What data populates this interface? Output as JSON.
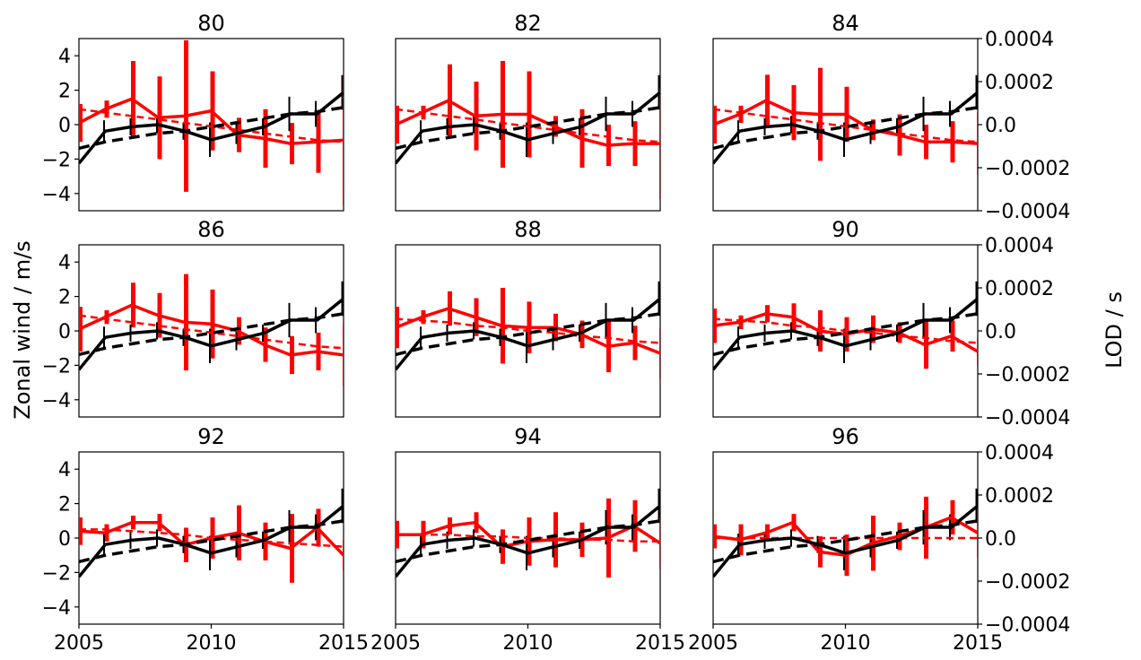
{
  "figure": {
    "ylabel_left": "Zonal wind / m/s",
    "ylabel_right": "LOD / s",
    "colors": {
      "wind": "#ff0000",
      "lod": "#000000",
      "axes": "#000000",
      "background": "#ffffff"
    }
  },
  "chart_data": {
    "type": "line",
    "layout": "3x3 grid, shared x axis, left axis wind, right axis LOD",
    "xlim": [
      2005,
      2015
    ],
    "ylim": [
      -5,
      5
    ],
    "ylim_right": [
      -0.0004,
      0.0004
    ],
    "x_ticks": [
      "2005",
      "2010",
      "2015"
    ],
    "y_ticks": [
      "4",
      "2",
      "0",
      "−2",
      "−4"
    ],
    "y_ticks_right": [
      "0.0004",
      "0.0002",
      "0.0",
      "−0.0002",
      "−0.0004"
    ],
    "x": [
      2005,
      2006,
      2007,
      2008,
      2009,
      2010,
      2011,
      2012,
      2013,
      2014,
      2015
    ],
    "lod": {
      "solid": [
        -0.00018,
        -3e-05,
        -1e-05,
        0.0,
        -3e-05,
        -7e-05,
        -4e-05,
        -1e-05,
        5e-05,
        5e-05,
        0.00015
      ],
      "err": [
        8e-05,
        5e-05,
        4e-05,
        4e-05,
        4e-05,
        8e-05,
        5e-05,
        4e-05,
        8e-05,
        6e-05,
        8e-05
      ],
      "trend_dashed": [
        -0.00011,
        -8e-05,
        -6e-05,
        -4e-05,
        -3e-05,
        -1e-05,
        1e-05,
        3e-05,
        5e-05,
        6e-05,
        8e-05
      ]
    },
    "panels": [
      {
        "title": "80",
        "wind": [
          0.1,
          0.9,
          1.5,
          0.4,
          0.5,
          0.8,
          -0.6,
          -0.8,
          -1.1,
          -1.0,
          -0.9
        ],
        "err": [
          1.1,
          0.5,
          2.2,
          2.4,
          4.4,
          2.3,
          1.0,
          1.7,
          1.2,
          1.8,
          3.8
        ],
        "trend": [
          0.9,
          0.7,
          0.5,
          0.3,
          0.1,
          -0.1,
          -0.3,
          -0.5,
          -0.7,
          -0.9,
          -1.0
        ]
      },
      {
        "title": "82",
        "wind": [
          0.0,
          0.7,
          1.4,
          0.5,
          0.6,
          0.6,
          -0.1,
          -0.8,
          -1.2,
          -1.1,
          -1.1
        ],
        "err": [
          1.1,
          0.4,
          2.1,
          2.0,
          3.1,
          2.5,
          0.6,
          1.7,
          1.2,
          1.3,
          3.2
        ],
        "trend": [
          0.9,
          0.7,
          0.5,
          0.3,
          0.1,
          -0.1,
          -0.3,
          -0.5,
          -0.7,
          -0.9,
          -1.0
        ]
      },
      {
        "title": "84",
        "wind": [
          0.0,
          0.6,
          1.4,
          0.7,
          0.6,
          0.6,
          -0.3,
          -0.6,
          -1.0,
          -1.0,
          -1.1
        ],
        "err": [
          1.1,
          0.5,
          1.5,
          1.6,
          2.7,
          1.6,
          0.6,
          1.2,
          1.0,
          1.2,
          1.8
        ],
        "trend": [
          0.9,
          0.7,
          0.5,
          0.3,
          0.1,
          -0.1,
          -0.3,
          -0.5,
          -0.7,
          -0.9,
          -1.0
        ]
      },
      {
        "title": "86",
        "wind": [
          0.1,
          0.8,
          1.5,
          0.9,
          0.5,
          0.4,
          0.0,
          -0.8,
          -1.4,
          -1.2,
          -1.4
        ],
        "err": [
          1.3,
          0.4,
          1.3,
          1.3,
          2.8,
          2.0,
          0.8,
          1.0,
          1.1,
          1.1,
          1.8
        ],
        "trend": [
          0.9,
          0.7,
          0.5,
          0.3,
          0.1,
          -0.1,
          -0.3,
          -0.5,
          -0.7,
          -0.9,
          -1.0
        ]
      },
      {
        "title": "88",
        "wind": [
          0.2,
          0.8,
          1.3,
          0.8,
          0.3,
          0.2,
          0.2,
          -0.2,
          -0.9,
          -0.7,
          -1.3
        ],
        "err": [
          1.2,
          0.4,
          1.0,
          1.1,
          2.2,
          1.5,
          0.8,
          0.8,
          1.5,
          1.0,
          1.5
        ],
        "trend": [
          0.7,
          0.6,
          0.5,
          0.3,
          0.2,
          0.0,
          -0.1,
          -0.3,
          -0.4,
          -0.6,
          -0.7
        ]
      },
      {
        "title": "90",
        "wind": [
          0.3,
          0.5,
          1.0,
          0.8,
          0.0,
          -0.2,
          0.1,
          -0.1,
          -0.8,
          -0.3,
          -1.2
        ],
        "err": [
          1.0,
          0.4,
          0.5,
          0.8,
          1.2,
          1.0,
          0.8,
          0.6,
          1.4,
          0.9,
          0.8
        ],
        "trend": [
          0.7,
          0.6,
          0.5,
          0.3,
          0.2,
          0.0,
          -0.1,
          -0.3,
          -0.4,
          -0.6,
          -0.7
        ]
      },
      {
        "title": "92",
        "wind": [
          0.4,
          0.3,
          0.9,
          0.9,
          -0.4,
          0.0,
          0.3,
          -0.2,
          -0.6,
          0.6,
          -1.0
        ],
        "err": [
          0.8,
          0.5,
          0.4,
          0.5,
          1.0,
          1.2,
          1.6,
          1.1,
          2.0,
          1.1,
          0.9
        ],
        "trend": [
          0.5,
          0.5,
          0.4,
          0.3,
          0.2,
          0.0,
          -0.1,
          -0.2,
          -0.3,
          -0.4,
          -0.5
        ]
      },
      {
        "title": "94",
        "wind": [
          0.2,
          0.2,
          0.7,
          0.9,
          -0.5,
          -0.2,
          -0.1,
          -0.1,
          0.0,
          0.7,
          -0.3
        ],
        "err": [
          0.8,
          0.8,
          0.5,
          0.6,
          1.0,
          1.4,
          1.6,
          1.0,
          2.3,
          1.5,
          1.5
        ],
        "trend": [
          0.2,
          0.2,
          0.2,
          0.1,
          0.1,
          0.0,
          0.0,
          -0.1,
          -0.1,
          -0.2,
          -0.2
        ]
      },
      {
        "title": "96",
        "wind": [
          0.1,
          -0.1,
          0.3,
          0.9,
          -0.8,
          -1.0,
          -0.3,
          0.1,
          0.6,
          1.2,
          0.3
        ],
        "err": [
          0.7,
          0.9,
          0.5,
          0.5,
          0.9,
          1.2,
          1.6,
          0.8,
          1.8,
          1.0,
          1.4
        ],
        "trend": [
          0.0,
          0.0,
          0.0,
          0.0,
          0.0,
          0.0,
          0.0,
          0.0,
          0.0,
          0.0,
          0.0
        ]
      }
    ]
  }
}
